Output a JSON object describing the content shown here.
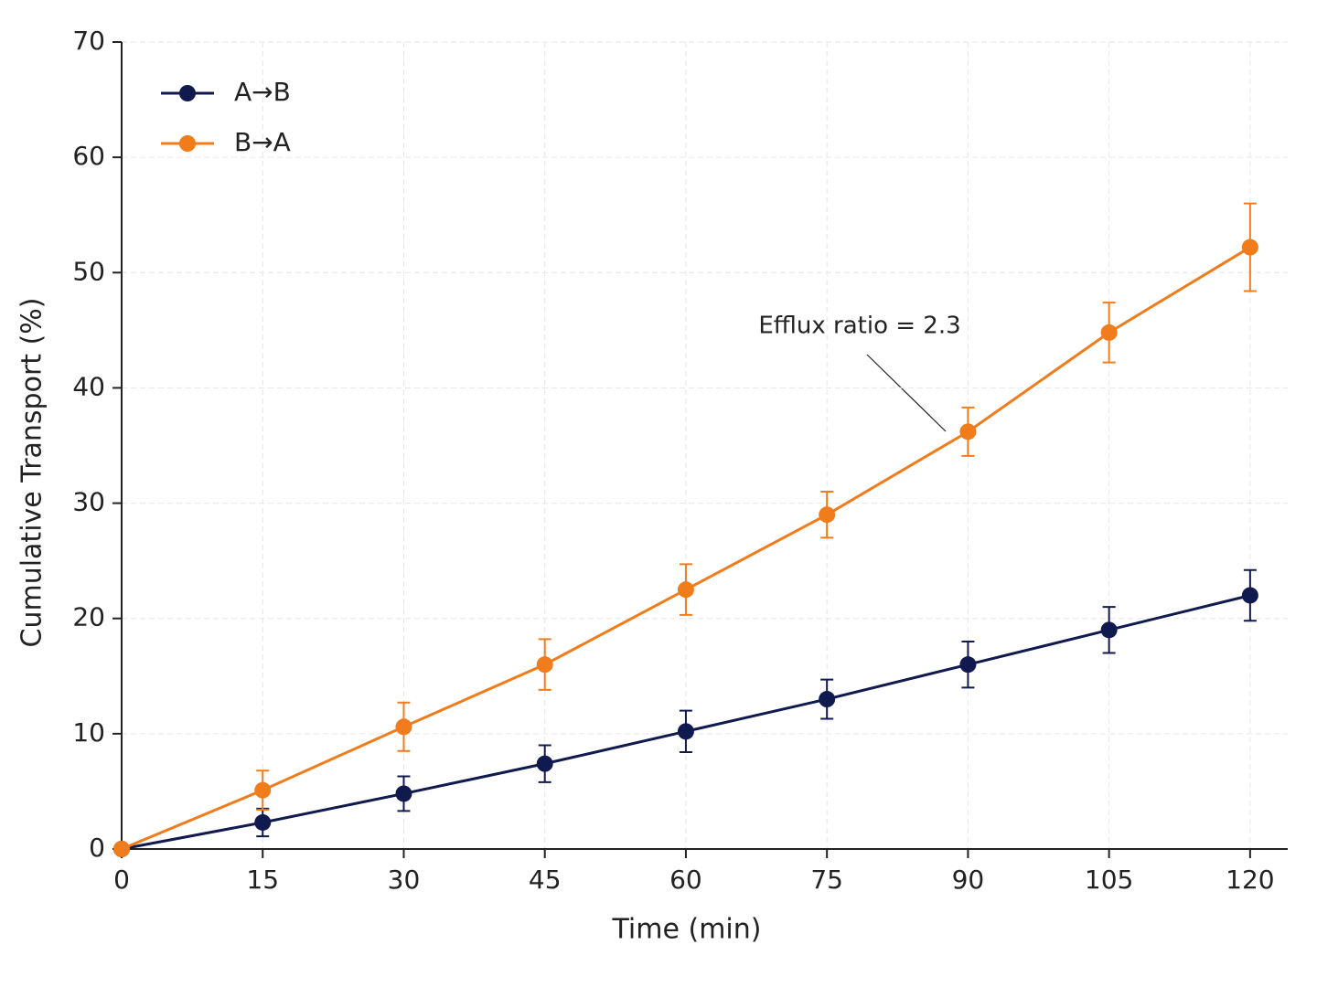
{
  "chart_data": {
    "type": "line",
    "x_label": "Time (min)",
    "y_label": "Cumulative Transport (%)",
    "x": [
      0,
      15,
      30,
      45,
      60,
      75,
      90,
      105,
      120
    ],
    "series": [
      {
        "name": "A→B",
        "color": "#111a4f",
        "values": [
          0,
          2.3,
          4.8,
          7.4,
          10.2,
          13,
          16,
          19,
          22
        ],
        "errors": [
          0,
          1.2,
          1.5,
          1.6,
          1.8,
          1.7,
          2,
          2,
          2.2
        ]
      },
      {
        "name": "B→A",
        "color": "#f07c1c",
        "values": [
          0,
          5.1,
          10.6,
          16,
          22.5,
          29,
          36.2,
          44.8,
          52.2
        ],
        "errors": [
          0,
          1.7,
          2.1,
          2.2,
          2.2,
          2,
          2.1,
          2.6,
          3.8
        ]
      }
    ],
    "xlim": [
      0,
      124
    ],
    "ylim": [
      0,
      70
    ],
    "xticks": [
      0,
      15,
      30,
      45,
      60,
      75,
      90,
      105,
      120
    ],
    "yticks": [
      0,
      10,
      20,
      30,
      40,
      50,
      60,
      70
    ],
    "grid": true,
    "legend": "upper left",
    "annotation": "Efflux ratio = 2.3"
  }
}
